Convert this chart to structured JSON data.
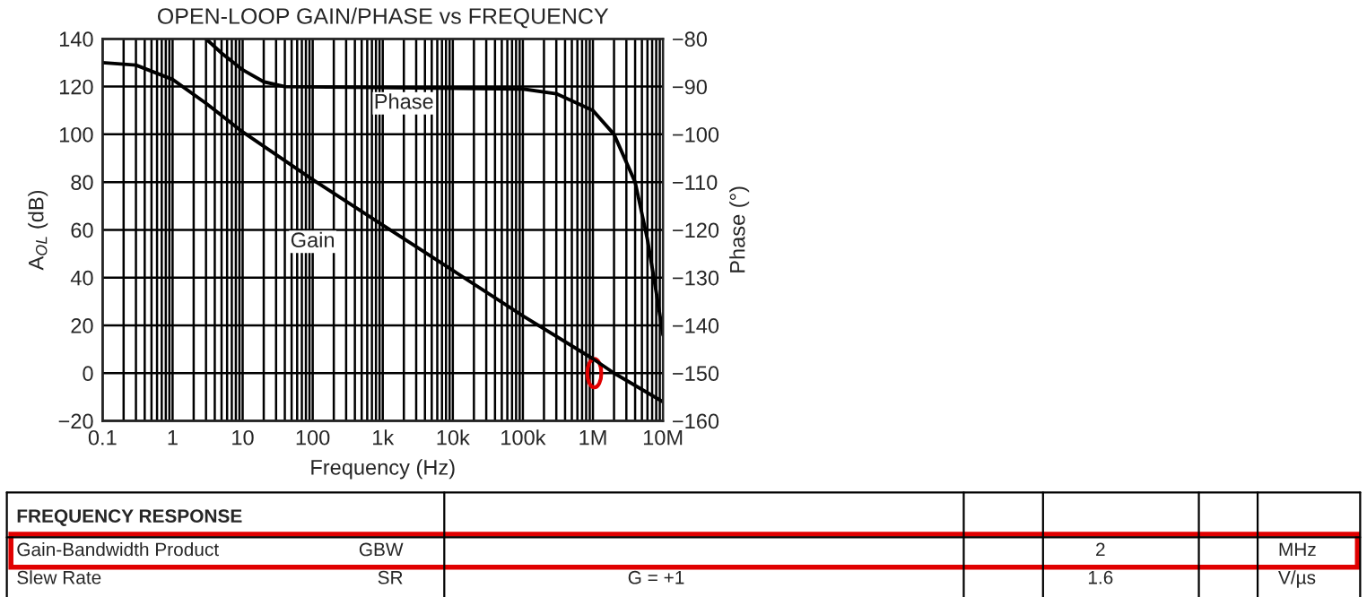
{
  "chart_data": {
    "type": "line",
    "title": "OPEN-LOOP GAIN/PHASE vs FREQUENCY",
    "xlabel": "Frequency (Hz)",
    "ylabel": "A$_{OL}$ (dB)",
    "y2label": "Phase (°)",
    "log": "x",
    "grid": true,
    "legend": false,
    "marker": "none",
    "line_style": "solid",
    "xlim": [
      0.1,
      10000000
    ],
    "xticks": [
      {
        "value": 0.1,
        "label": "0.1"
      },
      {
        "value": 1,
        "label": "1"
      },
      {
        "value": 10,
        "label": "10"
      },
      {
        "value": 100,
        "label": "100"
      },
      {
        "value": 1000,
        "label": "1k"
      },
      {
        "value": 10000,
        "label": "10k"
      },
      {
        "value": 100000,
        "label": "100k"
      },
      {
        "value": 1000000,
        "label": "1M"
      },
      {
        "value": 10000000,
        "label": "10M"
      }
    ],
    "ylim": [
      -20,
      140
    ],
    "yticks": [
      {
        "value": -20,
        "label": "−20"
      },
      0,
      20,
      40,
      60,
      80,
      100,
      120,
      140
    ],
    "y2lim": [
      -160,
      -80
    ],
    "y2ticks": [
      {
        "value": -160,
        "label": "−160"
      },
      {
        "value": -150,
        "label": "−150"
      },
      {
        "value": -140,
        "label": "−140"
      },
      {
        "value": -130,
        "label": "−130"
      },
      {
        "value": -120,
        "label": "−120"
      },
      {
        "value": -110,
        "label": "−110"
      },
      {
        "value": -100,
        "label": "−100"
      },
      {
        "value": -90,
        "label": "−90"
      },
      {
        "value": -80,
        "label": "−80"
      }
    ],
    "series": [
      {
        "color": "#000000",
        "x": [
          0.1,
          0.3,
          1,
          3,
          10,
          100,
          1000,
          10000,
          100000,
          1000000,
          2000000,
          10000000
        ],
        "values": [
          130,
          129,
          123,
          113,
          101,
          81,
          62,
          43,
          24,
          6,
          0,
          -12
        ]
      },
      {
        "color": "#000000",
        "axis": "y2",
        "x": [
          3,
          5,
          10,
          20,
          40,
          100000,
          300000,
          1000000,
          2000000,
          4000000,
          6000000,
          8000000,
          10000000
        ],
        "values": [
          -80,
          -83,
          -86.5,
          -89,
          -90,
          -90.5,
          -91.5,
          -95,
          -100,
          -110,
          -122,
          -133,
          -142
        ]
      }
    ],
    "annotations": [
      {
        "text": "Phase",
        "x": 2000,
        "y": 113
      },
      {
        "text": "Gain",
        "x": 100,
        "y": 55
      },
      "FREQUENCY RESPONSE",
      "Gain-Bandwidth Product",
      "GBW",
      "2",
      "MHz",
      "Slew Rate",
      "SR",
      "G = +1",
      "1.6",
      "V/µs"
    ]
  }
}
